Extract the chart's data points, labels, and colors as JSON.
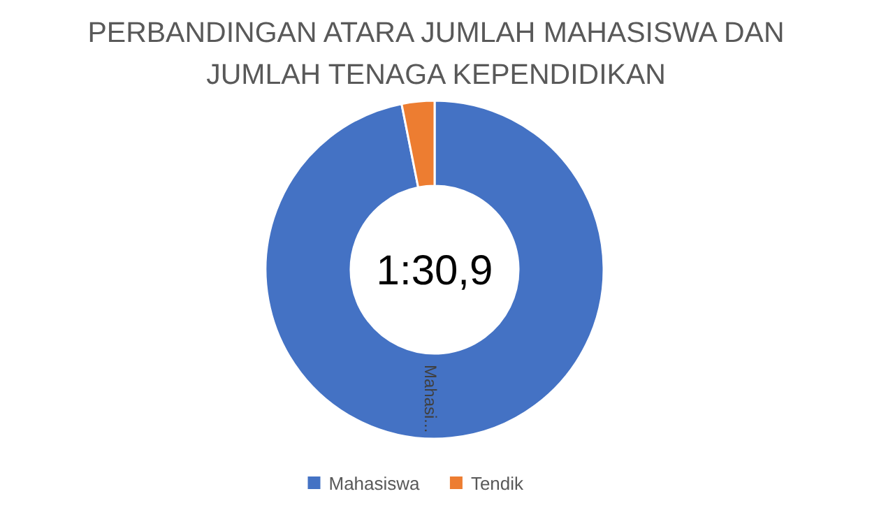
{
  "chart_data": {
    "type": "donut",
    "title": "PERBANDINGAN ATARA JUMLAH MAHASISWA DAN JUMLAH TENAGA KEPENDIDIKAN",
    "categories": [
      "Mahasiswa",
      "Tendik"
    ],
    "values": [
      96.87,
      3.13
    ],
    "colors": [
      "#4472c4",
      "#ed7d31"
    ],
    "annotations": [
      "1:30,9",
      "Mahasi..."
    ],
    "legend": "bottom"
  }
}
